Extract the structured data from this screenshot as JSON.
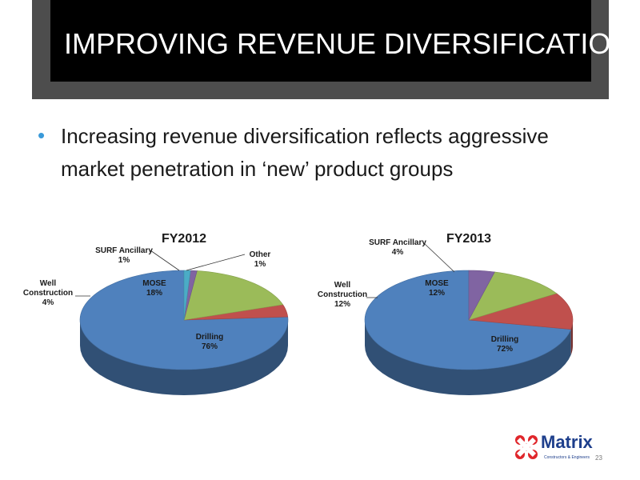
{
  "slide": {
    "title": "IMPROVING REVENUE DIVERSIFICATION",
    "bullet": "Increasing revenue diversification reflects aggressive market penetration in ‘new’ product groups",
    "page_number": "23",
    "logo_word": "Matrix",
    "logo_tagline": "Constructors & Engineers"
  },
  "colors": {
    "Drilling": "#4f81bd",
    "Well Construction": "#c0504d",
    "MOSE": "#9bbb59",
    "SURF Ancillary": "#8064a2",
    "Other": "#4bacc6",
    "bullet": "#3a9ad9"
  },
  "chart_data": [
    {
      "type": "pie",
      "title": "FY2012",
      "series": [
        {
          "name": "Drilling",
          "value": 76,
          "label": "Drilling",
          "pct": "76%"
        },
        {
          "name": "Well Construction",
          "value": 4,
          "label": "Well Construction",
          "pct": "4%"
        },
        {
          "name": "MOSE",
          "value": 18,
          "label": "MOSE",
          "pct": "18%"
        },
        {
          "name": "SURF Ancillary",
          "value": 1,
          "label": "SURF Ancillary",
          "pct": "1%"
        },
        {
          "name": "Other",
          "value": 1,
          "label": "Other",
          "pct": "1%"
        }
      ]
    },
    {
      "type": "pie",
      "title": "FY2013",
      "series": [
        {
          "name": "Drilling",
          "value": 72,
          "label": "Drilling",
          "pct": "72%"
        },
        {
          "name": "Well Construction",
          "value": 12,
          "label": "Well Construction",
          "pct": "12%"
        },
        {
          "name": "MOSE",
          "value": 12,
          "label": "MOSE",
          "pct": "12%"
        },
        {
          "name": "SURF Ancillary",
          "value": 4,
          "label": "SURF Ancillary",
          "pct": "4%"
        }
      ]
    }
  ]
}
